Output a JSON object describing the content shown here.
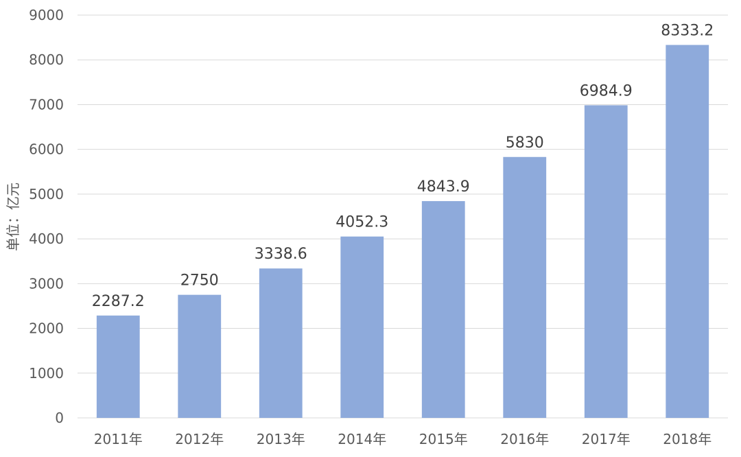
{
  "chart_data": {
    "type": "bar",
    "title": "",
    "xlabel": "",
    "ylabel": "单位：亿元",
    "categories": [
      "2011年",
      "2012年",
      "2013年",
      "2014年",
      "2015年",
      "2016年",
      "2017年",
      "2018年"
    ],
    "values": [
      2287.2,
      2750,
      3338.6,
      4052.3,
      4843.9,
      5830,
      6984.9,
      8333.2
    ],
    "data_labels": [
      "2287.2",
      "2750",
      "3338.6",
      "4052.3",
      "4843.9",
      "5830",
      "6984.9",
      "8333.2"
    ],
    "ylim": [
      0,
      9000
    ],
    "yticks": [
      0,
      1000,
      2000,
      3000,
      4000,
      5000,
      6000,
      7000,
      8000,
      9000
    ],
    "ytick_labels": [
      "0",
      "1000",
      "2000",
      "3000",
      "4000",
      "5000",
      "6000",
      "7000",
      "8000",
      "9000"
    ],
    "grid": true,
    "legend": "none",
    "bar_color": "#8eaadb"
  }
}
